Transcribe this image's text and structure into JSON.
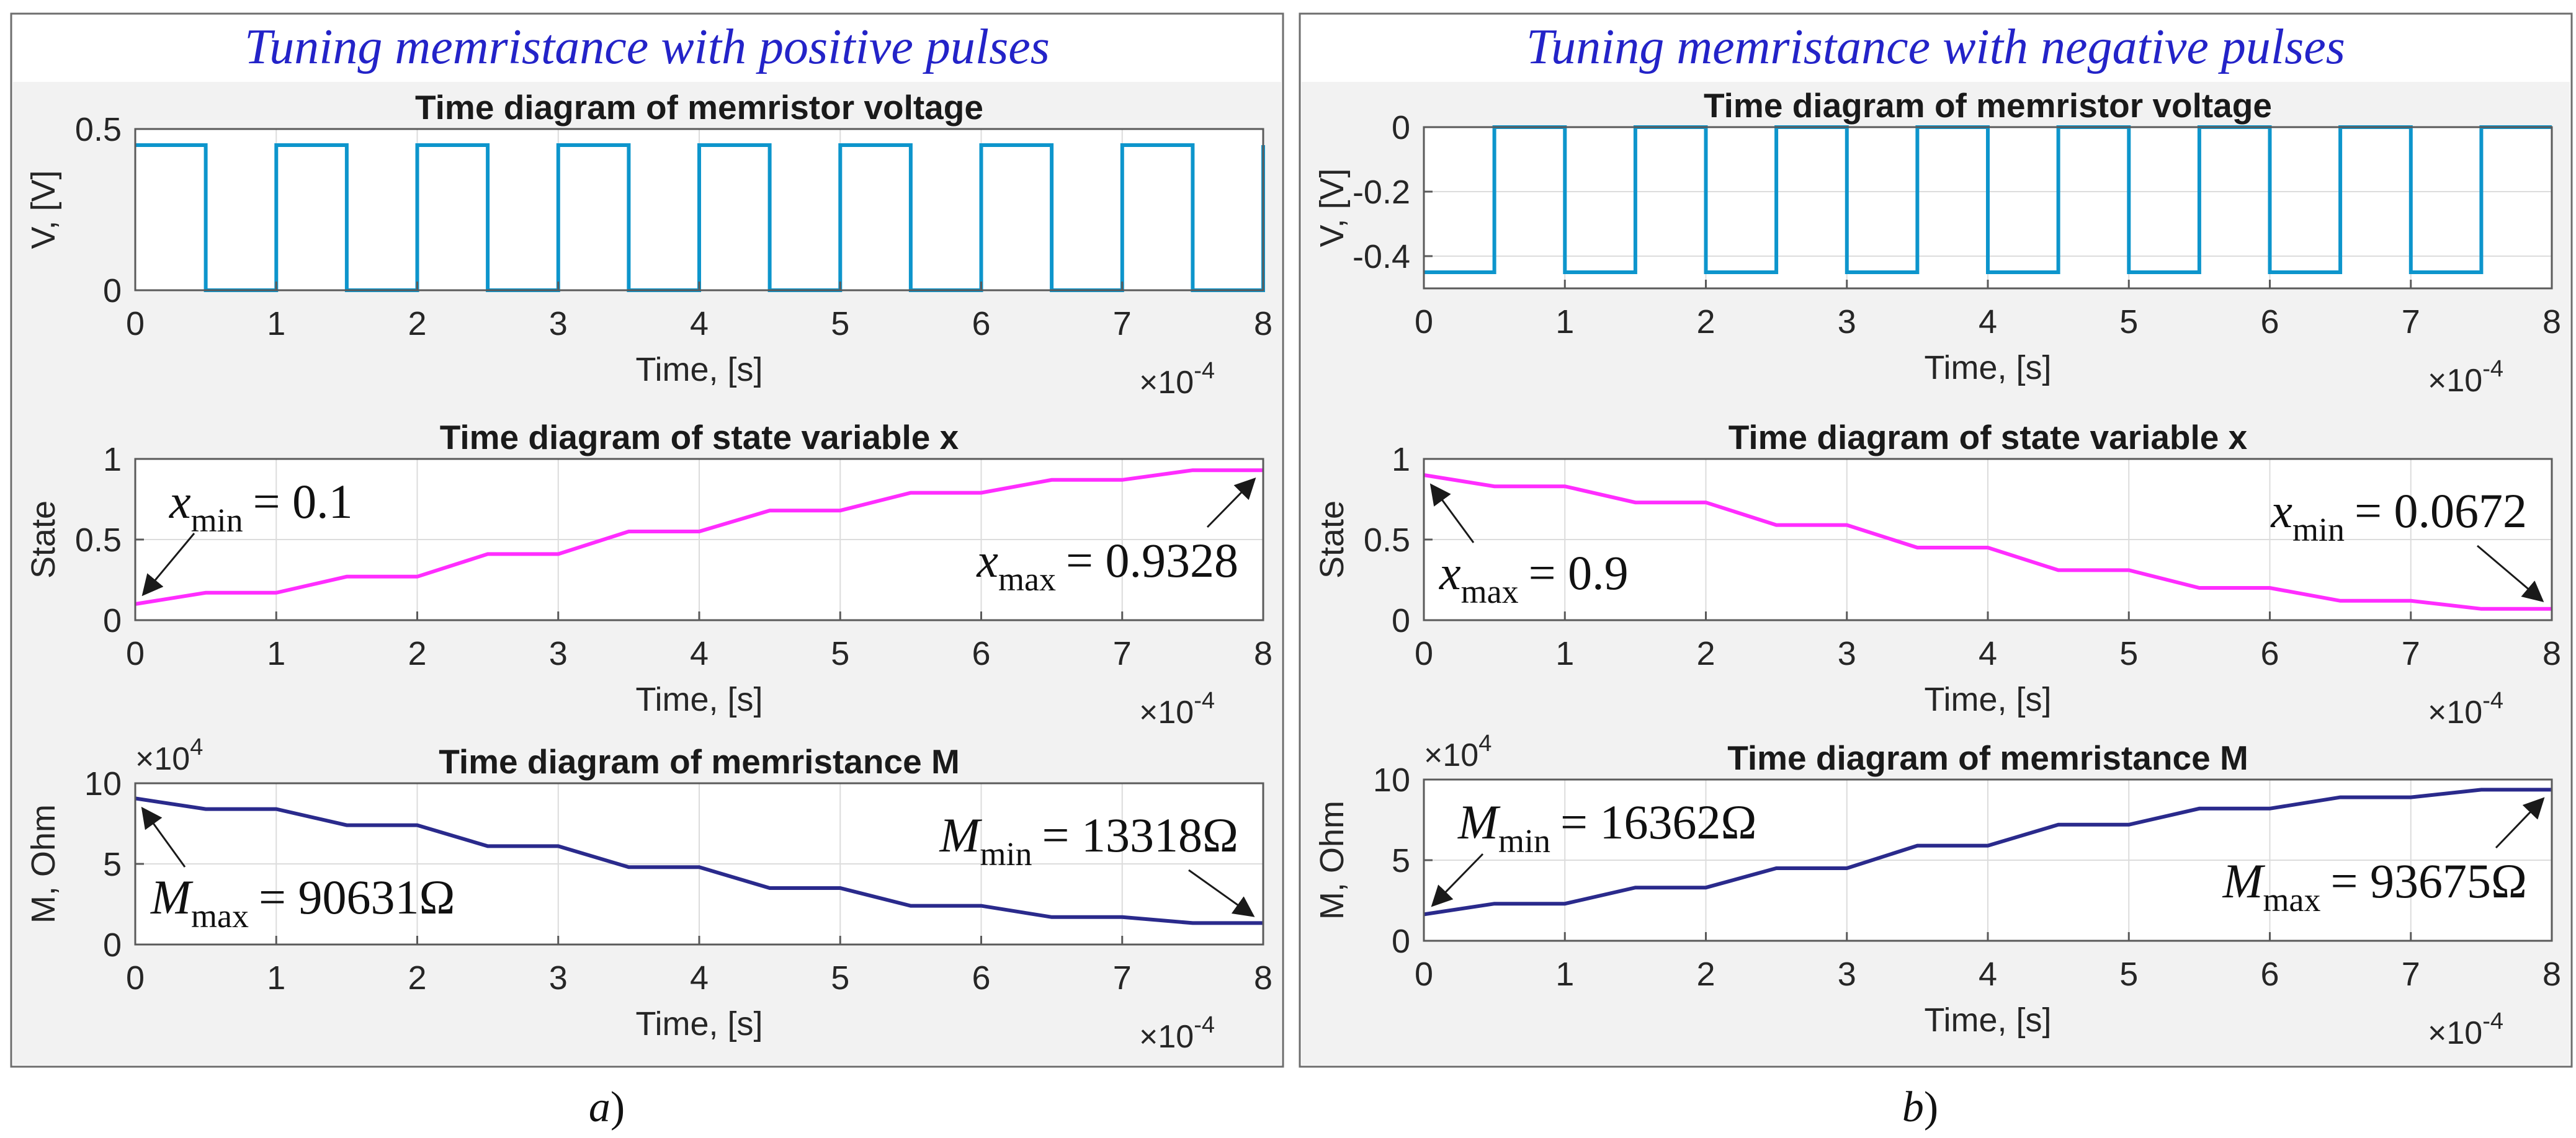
{
  "colors": {
    "title": "#2323c8",
    "voltage_line": "#0d95cc",
    "state_line": "#ff2dff",
    "memristance_line": "#2a2a8c",
    "panel_bg": "#f2f2f2",
    "axes_bg": "#ffffff",
    "grid": "#dcdcdc",
    "text": "#262626",
    "border": "#6e6e6e"
  },
  "panels": [
    {
      "id": "a",
      "title": "Tuning memristance with positive pulses",
      "caption_letter": "a",
      "caption_paren": ")",
      "chart_data": [
        {
          "type": "line",
          "title": "Time diagram of memristor voltage",
          "xlabel": "Time, [s]",
          "ylabel": "V, [V]",
          "xlim": [
            0,
            8
          ],
          "ylim": [
            0,
            0.5
          ],
          "xticks": [
            "0",
            "1",
            "2",
            "3",
            "4",
            "5",
            "6",
            "7",
            "8"
          ],
          "yticks": [
            {
              "value": 0,
              "label": "0"
            },
            {
              "value": 0.5,
              "label": "0.5"
            }
          ],
          "x_exponent_base": "×10",
          "x_exponent": "-4",
          "y_exponent_base": "",
          "y_exponent": "",
          "series": [
            {
              "name": "voltage",
              "color_key": "voltage_line",
              "x": [
                0,
                0.5,
                0.5,
                1,
                1,
                1.5,
                1.5,
                2,
                2,
                2.5,
                2.5,
                3,
                3,
                3.5,
                3.5,
                4,
                4,
                4.5,
                4.5,
                5,
                5,
                5.5,
                5.5,
                6,
                6,
                6.5,
                6.5,
                7,
                7,
                7.5,
                7.5,
                8,
                8
              ],
              "y": [
                0.45,
                0.45,
                0,
                0,
                0.45,
                0.45,
                0,
                0,
                0.45,
                0.45,
                0,
                0,
                0.45,
                0.45,
                0,
                0,
                0.45,
                0.45,
                0,
                0,
                0.45,
                0.45,
                0,
                0,
                0.45,
                0.45,
                0,
                0,
                0.45,
                0.45,
                0,
                0,
                0.45
              ]
            }
          ],
          "annotations": []
        },
        {
          "type": "line",
          "title": "Time diagram of state variable x",
          "xlabel": "Time, [s]",
          "ylabel": "State",
          "xlim": [
            0,
            8
          ],
          "ylim": [
            0,
            1
          ],
          "xticks": [
            "0",
            "1",
            "2",
            "3",
            "4",
            "5",
            "6",
            "7",
            "8"
          ],
          "yticks": [
            {
              "value": 0,
              "label": "0"
            },
            {
              "value": 0.5,
              "label": "0.5"
            },
            {
              "value": 1,
              "label": "1"
            }
          ],
          "x_exponent_base": "×10",
          "x_exponent": "-4",
          "y_exponent_base": "",
          "y_exponent": "",
          "series": [
            {
              "name": "state",
              "color_key": "state_line",
              "x": [
                0,
                0.5,
                1,
                1.5,
                2,
                2.5,
                3,
                3.5,
                4,
                4.5,
                5,
                5.5,
                6,
                6.5,
                7,
                7.5,
                8
              ],
              "y": [
                0.1,
                0.17,
                0.17,
                0.27,
                0.27,
                0.41,
                0.41,
                0.55,
                0.55,
                0.68,
                0.68,
                0.79,
                0.79,
                0.87,
                0.87,
                0.93,
                0.93
              ]
            }
          ],
          "annotations": [
            {
              "sym": "x",
              "sub": "min",
              "value": "= 0.1",
              "pos": "top-left",
              "point": [
                0,
                0.1
              ]
            },
            {
              "sym": "x",
              "sub": "max",
              "value": "= 0.9328",
              "pos": "bottom-right",
              "point": [
                8,
                0.93
              ]
            }
          ]
        },
        {
          "type": "line",
          "title": "Time diagram of memristance M",
          "xlabel": "Time, [s]",
          "ylabel": "M, Ohm",
          "xlim": [
            0,
            8
          ],
          "ylim": [
            0,
            10
          ],
          "xticks": [
            "0",
            "1",
            "2",
            "3",
            "4",
            "5",
            "6",
            "7",
            "8"
          ],
          "yticks": [
            {
              "value": 0,
              "label": "0"
            },
            {
              "value": 5,
              "label": "5"
            },
            {
              "value": 10,
              "label": "10"
            }
          ],
          "x_exponent_base": "×10",
          "x_exponent": "-4",
          "y_exponent_base": "×10",
          "y_exponent": "4",
          "series": [
            {
              "name": "memristance",
              "color_key": "memristance_line",
              "x": [
                0,
                0.5,
                1,
                1.5,
                2,
                2.5,
                3,
                3.5,
                4,
                4.5,
                5,
                5.5,
                6,
                6.5,
                7,
                7.5,
                8
              ],
              "y": [
                9.06,
                8.4,
                8.4,
                7.4,
                7.4,
                6.1,
                6.1,
                4.8,
                4.8,
                3.5,
                3.5,
                2.4,
                2.4,
                1.7,
                1.7,
                1.33,
                1.33
              ]
            }
          ],
          "annotations": [
            {
              "sym": "M",
              "sub": "max",
              "value": "= 90631Ω",
              "pos": "bottom-left",
              "point": [
                0,
                9.06
              ]
            },
            {
              "sym": "M",
              "sub": "min",
              "value": "= 13318Ω",
              "pos": "top-right",
              "point": [
                8,
                1.33
              ]
            }
          ]
        }
      ]
    },
    {
      "id": "b",
      "title": "Tuning memristance with negative pulses",
      "caption_letter": "b",
      "caption_paren": ")",
      "chart_data": [
        {
          "type": "line",
          "title": "Time diagram of memristor voltage",
          "xlabel": "Time, [s]",
          "ylabel": "V, [V]",
          "xlim": [
            0,
            8
          ],
          "ylim": [
            -0.5,
            0
          ],
          "xticks": [
            "0",
            "1",
            "2",
            "3",
            "4",
            "5",
            "6",
            "7",
            "8"
          ],
          "yticks": [
            {
              "value": 0,
              "label": "0"
            },
            {
              "value": -0.2,
              "label": "-0.2"
            },
            {
              "value": -0.4,
              "label": "-0.4"
            }
          ],
          "x_exponent_base": "×10",
          "x_exponent": "-4",
          "y_exponent_base": "",
          "y_exponent": "",
          "series": [
            {
              "name": "voltage",
              "color_key": "voltage_line",
              "x": [
                0,
                0.5,
                0.5,
                1,
                1,
                1.5,
                1.5,
                2,
                2,
                2.5,
                2.5,
                3,
                3,
                3.5,
                3.5,
                4,
                4,
                4.5,
                4.5,
                5,
                5,
                5.5,
                5.5,
                6,
                6,
                6.5,
                6.5,
                7,
                7,
                7.5,
                7.5,
                8
              ],
              "y": [
                -0.45,
                -0.45,
                0,
                0,
                -0.45,
                -0.45,
                0,
                0,
                -0.45,
                -0.45,
                0,
                0,
                -0.45,
                -0.45,
                0,
                0,
                -0.45,
                -0.45,
                0,
                0,
                -0.45,
                -0.45,
                0,
                0,
                -0.45,
                -0.45,
                0,
                0,
                -0.45,
                -0.45,
                0,
                0
              ]
            }
          ],
          "annotations": []
        },
        {
          "type": "line",
          "title": "Time diagram of state variable x",
          "xlabel": "Time, [s]",
          "ylabel": "State",
          "xlim": [
            0,
            8
          ],
          "ylim": [
            0,
            1
          ],
          "xticks": [
            "0",
            "1",
            "2",
            "3",
            "4",
            "5",
            "6",
            "7",
            "8"
          ],
          "yticks": [
            {
              "value": 0,
              "label": "0"
            },
            {
              "value": 0.5,
              "label": "0.5"
            },
            {
              "value": 1,
              "label": "1"
            }
          ],
          "x_exponent_base": "×10",
          "x_exponent": "-4",
          "y_exponent_base": "",
          "y_exponent": "",
          "series": [
            {
              "name": "state",
              "color_key": "state_line",
              "x": [
                0,
                0.5,
                1,
                1.5,
                2,
                2.5,
                3,
                3.5,
                4,
                4.5,
                5,
                5.5,
                6,
                6.5,
                7,
                7.5,
                8
              ],
              "y": [
                0.9,
                0.83,
                0.83,
                0.73,
                0.73,
                0.59,
                0.59,
                0.45,
                0.45,
                0.31,
                0.31,
                0.2,
                0.2,
                0.12,
                0.12,
                0.07,
                0.07
              ]
            }
          ],
          "annotations": [
            {
              "sym": "x",
              "sub": "max",
              "value": "= 0.9",
              "pos": "bottom-left",
              "point": [
                0,
                0.9
              ]
            },
            {
              "sym": "x",
              "sub": "min",
              "value": "= 0.0672",
              "pos": "top-right",
              "point": [
                8,
                0.07
              ]
            }
          ]
        },
        {
          "type": "line",
          "title": "Time diagram of memristance M",
          "xlabel": "Time, [s]",
          "ylabel": "M, Ohm",
          "xlim": [
            0,
            8
          ],
          "ylim": [
            0,
            10
          ],
          "xticks": [
            "0",
            "1",
            "2",
            "3",
            "4",
            "5",
            "6",
            "7",
            "8"
          ],
          "yticks": [
            {
              "value": 0,
              "label": "0"
            },
            {
              "value": 5,
              "label": "5"
            },
            {
              "value": 10,
              "label": "10"
            }
          ],
          "x_exponent_base": "×10",
          "x_exponent": "-4",
          "y_exponent_base": "×10",
          "y_exponent": "4",
          "series": [
            {
              "name": "memristance",
              "color_key": "memristance_line",
              "x": [
                0,
                0.5,
                1,
                1.5,
                2,
                2.5,
                3,
                3.5,
                4,
                4.5,
                5,
                5.5,
                6,
                6.5,
                7,
                7.5,
                8
              ],
              "y": [
                1.64,
                2.3,
                2.3,
                3.3,
                3.3,
                4.5,
                4.5,
                5.9,
                5.9,
                7.2,
                7.2,
                8.2,
                8.2,
                8.9,
                8.9,
                9.37,
                9.37
              ]
            }
          ],
          "annotations": [
            {
              "sym": "M",
              "sub": "min",
              "value": "= 16362Ω",
              "pos": "top-left",
              "point": [
                0,
                1.64
              ]
            },
            {
              "sym": "M",
              "sub": "max",
              "value": "= 93675Ω",
              "pos": "bottom-right",
              "point": [
                8,
                9.37
              ]
            }
          ]
        }
      ]
    }
  ]
}
